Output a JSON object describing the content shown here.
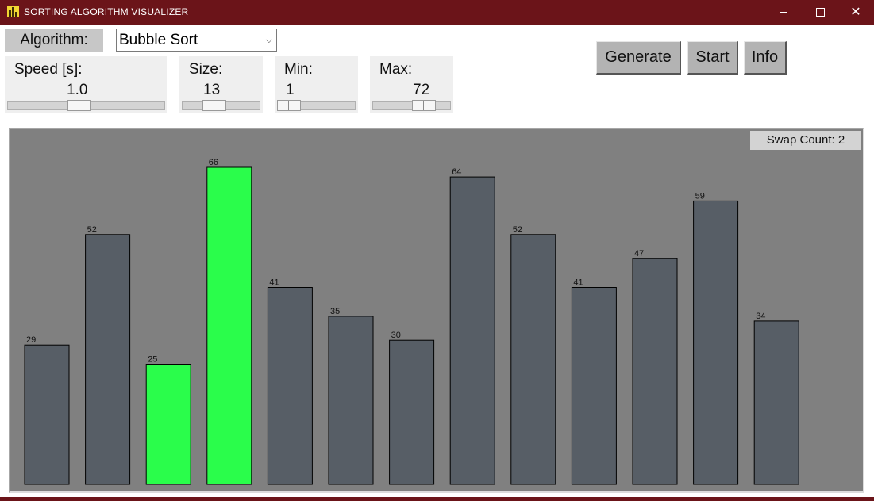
{
  "window": {
    "title": "SORTING ALGORITHM VISUALIZER",
    "controls": {
      "minimize_icon": "minimize-icon",
      "maximize_icon": "maximize-icon",
      "close_symbol": "✕"
    },
    "titlebar_color": "#6b1419"
  },
  "algorithm": {
    "label": "Algorithm:",
    "selected": "Bubble Sort",
    "chevron": "⌵"
  },
  "buttons": {
    "generate": "Generate",
    "start": "Start",
    "info": "Info"
  },
  "params": {
    "speed": {
      "label": "Speed [s]:",
      "value": "1.0",
      "slider_fraction": 0.45
    },
    "size": {
      "label": "Size:",
      "value": "13",
      "slider_fraction": 0.38
    },
    "min": {
      "label": "Min:",
      "value": "1",
      "slider_fraction": 0.0
    },
    "max": {
      "label": "Max:",
      "value": "72",
      "slider_fraction": 0.72
    }
  },
  "status": {
    "swap_count": "Swap Count: 2"
  },
  "chart_data": {
    "type": "bar",
    "values": [
      29,
      52,
      25,
      66,
      41,
      35,
      30,
      64,
      52,
      41,
      47,
      59,
      34
    ],
    "highlighted_indices": [
      2,
      3
    ],
    "ylim": [
      0,
      72
    ],
    "bar_color": "#575e66",
    "highlight_color": "#2afd4b",
    "background": "#808080"
  }
}
